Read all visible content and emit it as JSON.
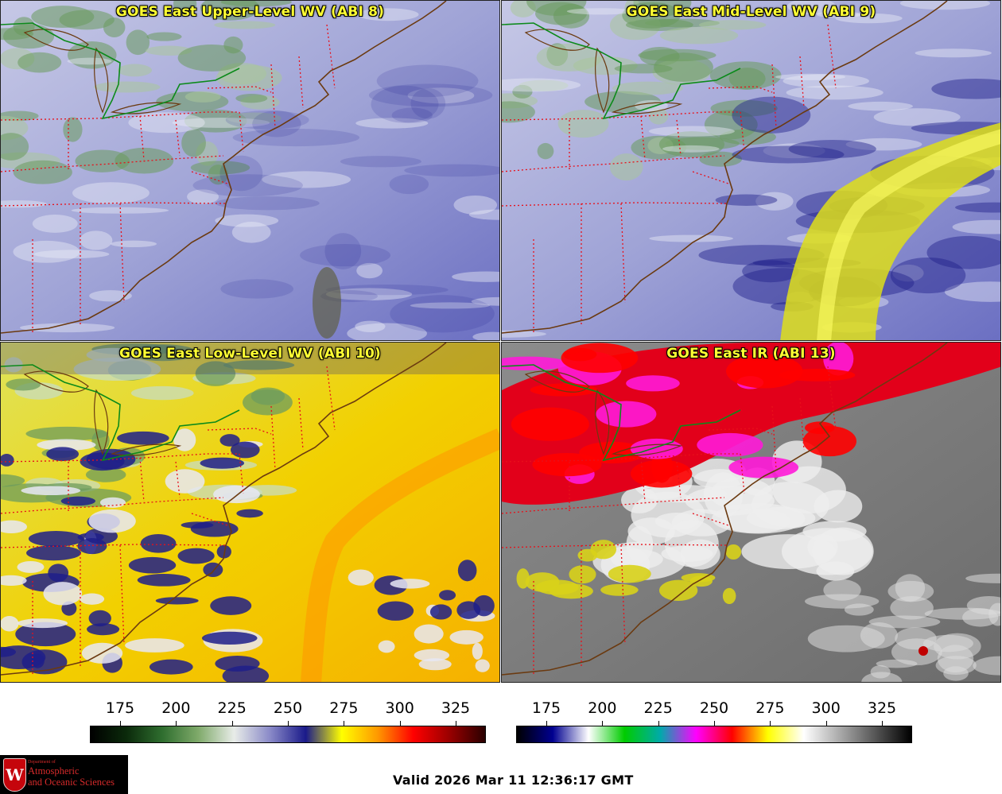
{
  "panels": [
    {
      "title": "GOES East Upper-Level WV (ABI 8)",
      "scheme": "wv",
      "moist": 0.15
    },
    {
      "title": "GOES East Mid-Level WV (ABI 9)",
      "scheme": "wv",
      "moist": 0.45
    },
    {
      "title": "GOES East Low-Level WV (ABI 10)",
      "scheme": "wvlow",
      "moist": 0.8
    },
    {
      "title": "GOES East IR (ABI 13)",
      "scheme": "ir",
      "moist": 0.5
    }
  ],
  "colorbars": [
    {
      "name": "water-vapor-colorbar",
      "ticks": [
        "175",
        "200",
        "225",
        "250",
        "275",
        "300",
        "325"
      ],
      "stops": [
        "#000000",
        "#0b2a0b",
        "#2f6e2f",
        "#7faa6a",
        "#e8ece8",
        "#8a8ac8",
        "#1a1a8a",
        "#ffff00",
        "#ff9900",
        "#ff0000",
        "#9a0000",
        "#2a0000"
      ]
    },
    {
      "name": "infrared-colorbar",
      "ticks": [
        "175",
        "200",
        "225",
        "250",
        "275",
        "300",
        "325"
      ],
      "stops": [
        "#000000",
        "#000090",
        "#ffffff",
        "#00cc00",
        "#00aaaa",
        "#ff00ff",
        "#ff0000",
        "#ffff00",
        "#ffffff",
        "#aaaaaa",
        "#555555",
        "#000000"
      ]
    }
  ],
  "valid_time": "Valid 2026 Mar 11 12:36:17 GMT",
  "logo": {
    "dept_prefix": "Department of",
    "line1": "Atmospheric",
    "line2": "and Oceanic Sciences",
    "seal_letter": "W"
  }
}
